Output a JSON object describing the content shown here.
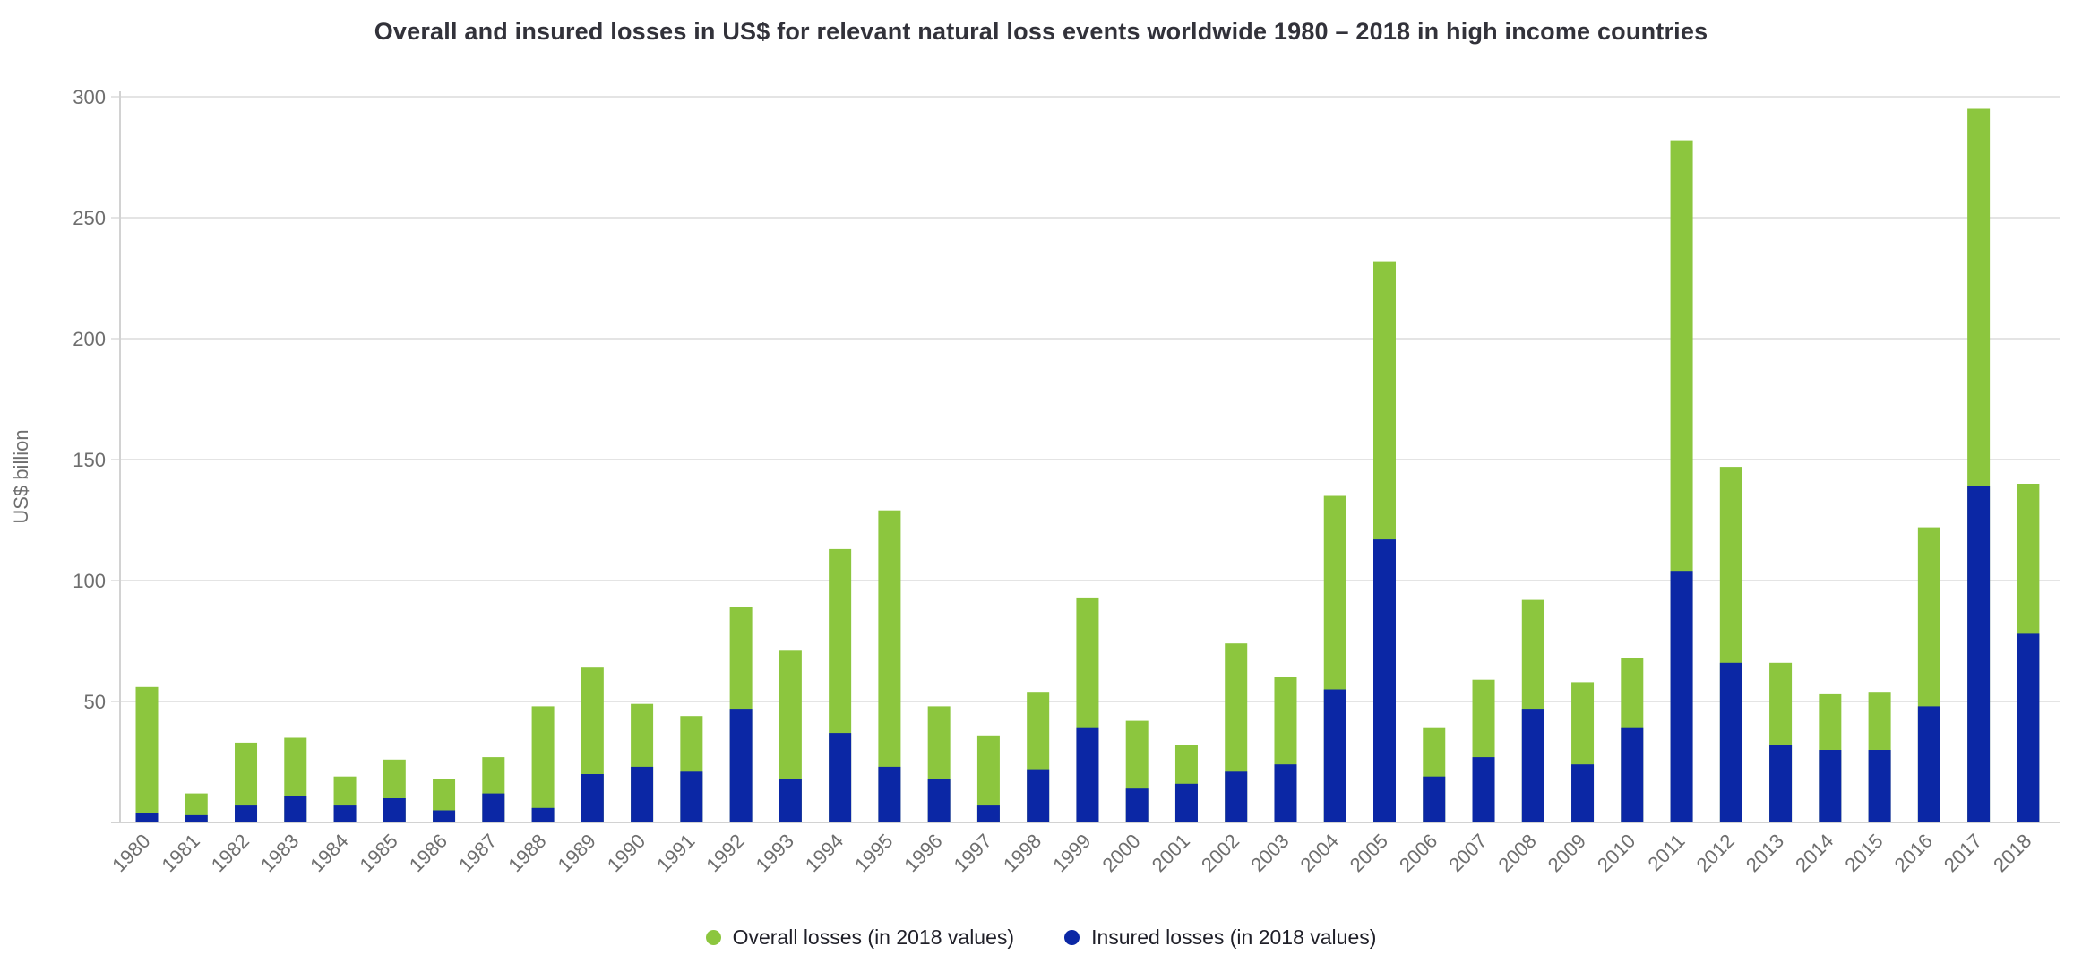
{
  "chart_data": {
    "type": "bar",
    "variant": "overlay-stacked",
    "title": "Overall and insured losses in US$ for relevant natural loss events worldwide 1980 – 2018 in high income countries",
    "ylabel": "US$ billion",
    "ylim": [
      0,
      300
    ],
    "yticks": [
      50,
      100,
      150,
      200,
      250,
      300
    ],
    "grid": true,
    "legend_position": "bottom",
    "categories": [
      "1980",
      "1981",
      "1982",
      "1983",
      "1984",
      "1985",
      "1986",
      "1987",
      "1988",
      "1989",
      "1990",
      "1991",
      "1992",
      "1993",
      "1994",
      "1995",
      "1996",
      "1997",
      "1998",
      "1999",
      "2000",
      "2001",
      "2002",
      "2003",
      "2004",
      "2005",
      "2006",
      "2007",
      "2008",
      "2009",
      "2010",
      "2011",
      "2012",
      "2013",
      "2014",
      "2015",
      "2016",
      "2017",
      "2018"
    ],
    "series": [
      {
        "name": "Overall losses (in 2018 values)",
        "color": "#8cc63e",
        "values": [
          56,
          12,
          33,
          35,
          19,
          26,
          18,
          27,
          48,
          64,
          49,
          44,
          89,
          71,
          113,
          129,
          48,
          36,
          54,
          93,
          42,
          32,
          74,
          60,
          135,
          232,
          39,
          59,
          92,
          58,
          68,
          282,
          147,
          66,
          53,
          54,
          122,
          295,
          140
        ]
      },
      {
        "name": "Insured losses (in 2018 values)",
        "color": "#0b27a5",
        "values": [
          4,
          3,
          7,
          11,
          7,
          10,
          5,
          12,
          6,
          20,
          23,
          21,
          47,
          18,
          37,
          23,
          18,
          7,
          22,
          39,
          14,
          16,
          21,
          24,
          55,
          117,
          19,
          27,
          47,
          24,
          39,
          104,
          66,
          32,
          30,
          30,
          48,
          139,
          78
        ]
      }
    ],
    "colors": {
      "grid": "#e4e4e4",
      "axis": "#d2d2d2",
      "tick_text": "#6e6e6e",
      "title_text": "#32323a",
      "legend_text": "#1f1f28"
    }
  }
}
